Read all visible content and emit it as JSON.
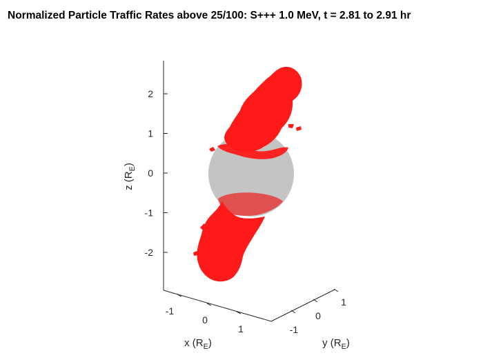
{
  "chart_data": {
    "type": "3d-isosurface",
    "title": "Normalized Particle Traffic Rates above 25/100: S+++ 1.0 MeV, t = 2.81 to 2.91 hr",
    "xlabel": {
      "base": "x (R",
      "sub": "E",
      "close": ")"
    },
    "ylabel": {
      "base": "y (R",
      "sub": "E",
      "close": ")"
    },
    "zlabel": {
      "base": "z (R",
      "sub": "E",
      "close": ")"
    },
    "x_ticks": [
      "-1",
      "0",
      "1"
    ],
    "y_ticks": [
      "-1",
      "0",
      "1"
    ],
    "z_ticks": [
      "2",
      "1",
      "0",
      "-1",
      "-2"
    ],
    "z_tick_values": [
      2,
      1,
      0,
      -1,
      -2
    ],
    "zlim": [
      -2.9,
      2.65
    ],
    "grid": false,
    "sphere": {
      "center": [
        0,
        0,
        0
      ],
      "radius": 1,
      "color": "#c4c4c4"
    },
    "surface_color": "#ff1a1a",
    "series": [
      {
        "name": "",
        "description_region": "north",
        "z_range": [
          0.6,
          2.65
        ]
      },
      {
        "name": "",
        "description_region": "south",
        "z_range": [
          -2.7,
          -0.5
        ]
      }
    ]
  }
}
